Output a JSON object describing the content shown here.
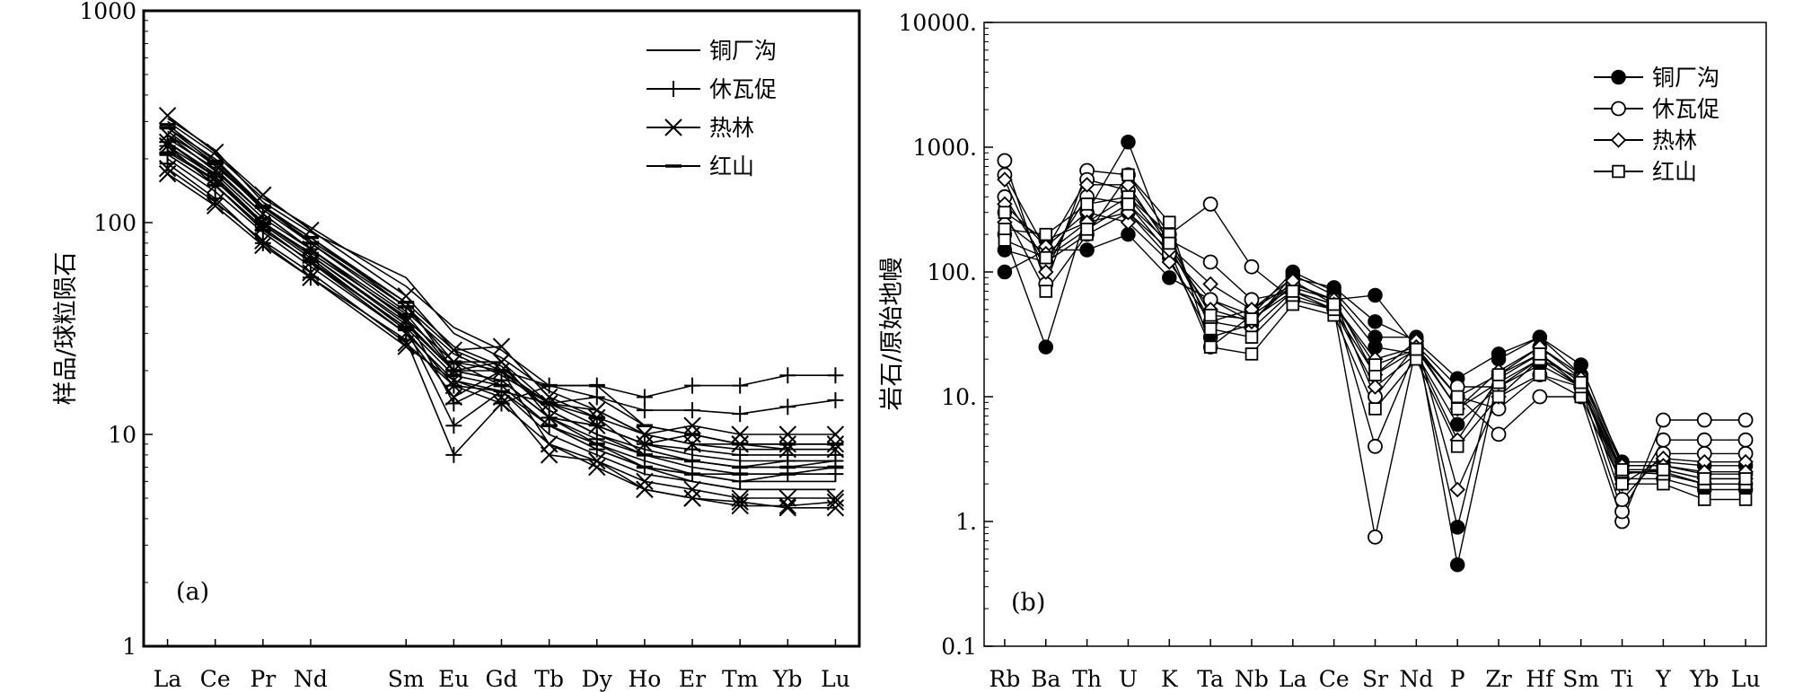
{
  "chart_data": [
    {
      "type": "line",
      "panel_label": "(a)",
      "ylabel": "样品/球粒陨石",
      "scale": "log",
      "ylim": [
        1,
        1000
      ],
      "yticks": [
        1,
        10,
        100,
        1000
      ],
      "ytick_labels": [
        "1",
        "10",
        "100",
        "1000"
      ],
      "categories": [
        "La",
        "Ce",
        "Pr",
        "Nd",
        "Sm",
        "Eu",
        "Gd",
        "Tb",
        "Dy",
        "Ho",
        "Er",
        "Tm",
        "Yb",
        "Lu"
      ],
      "category_positions": [
        1,
        2,
        3,
        4,
        6,
        7,
        8,
        9,
        10,
        11,
        12,
        13,
        14,
        15
      ],
      "xlim": [
        0.5,
        15.5
      ],
      "legend": [
        {
          "name": "铜厂沟",
          "marker": "none"
        },
        {
          "name": "休瓦促",
          "marker": "plus"
        },
        {
          "name": "热林",
          "marker": "x"
        },
        {
          "name": "红山",
          "marker": "dash"
        }
      ],
      "series": [
        {
          "group": "铜厂沟",
          "values": [
            280,
            200,
            120,
            85,
            40,
            25,
            20,
            13,
            10,
            8,
            7,
            6.5,
            6.5,
            6.5
          ]
        },
        {
          "group": "铜厂沟",
          "values": [
            250,
            180,
            110,
            75,
            35,
            22,
            17,
            11,
            8.5,
            7,
            6,
            5.5,
            5.5,
            5.5
          ]
        },
        {
          "group": "铜厂沟",
          "values": [
            220,
            160,
            100,
            70,
            33,
            20,
            18,
            12,
            9,
            7.5,
            6.5,
            6,
            6,
            6
          ]
        },
        {
          "group": "铜厂沟",
          "values": [
            260,
            190,
            115,
            80,
            38,
            24,
            19,
            14,
            11,
            9,
            8,
            7.5,
            7.5,
            7.5
          ]
        },
        {
          "group": "铜厂沟",
          "values": [
            300,
            210,
            130,
            95,
            50,
            32,
            25,
            17,
            15,
            11,
            10,
            9,
            9,
            9
          ]
        },
        {
          "group": "铜厂沟",
          "values": [
            200,
            140,
            90,
            62,
            30,
            18,
            16,
            10,
            8,
            6.5,
            6,
            5.5,
            5.5,
            5.5
          ]
        },
        {
          "group": "铜厂沟",
          "values": [
            270,
            185,
            118,
            82,
            42,
            26,
            21,
            13,
            10,
            8.5,
            7.5,
            7,
            7,
            7.5
          ]
        },
        {
          "group": "铜厂沟",
          "values": [
            310,
            220,
            125,
            90,
            55,
            30,
            23,
            16,
            13,
            10,
            9,
            8.5,
            8.5,
            8.5
          ]
        },
        {
          "group": "休瓦促",
          "values": [
            190,
            130,
            80,
            55,
            28,
            8,
            14,
            17,
            17,
            15,
            17,
            17,
            19,
            19
          ]
        },
        {
          "group": "休瓦促",
          "values": [
            210,
            150,
            95,
            65,
            32,
            11,
            16,
            14,
            15,
            13,
            13,
            12.5,
            13.5,
            14.5
          ]
        },
        {
          "group": "休瓦促",
          "values": [
            230,
            165,
            100,
            72,
            36,
            14,
            18,
            12,
            11,
            9,
            8.5,
            8,
            8,
            8
          ]
        },
        {
          "group": "休瓦促",
          "values": [
            240,
            170,
            105,
            75,
            37,
            20,
            18,
            12,
            9.5,
            8,
            7.5,
            7,
            7.5,
            7.5
          ]
        },
        {
          "group": "休瓦促",
          "values": [
            215,
            158,
            98,
            68,
            31,
            17,
            16,
            11,
            8.5,
            7,
            6.5,
            6,
            6.5,
            6.5
          ]
        },
        {
          "group": "热林",
          "values": [
            320,
            215,
            135,
            92,
            45,
            25,
            26,
            15,
            12,
            10,
            9,
            9,
            9,
            9
          ]
        },
        {
          "group": "热林",
          "values": [
            230,
            150,
            95,
            65,
            30,
            15,
            20,
            9,
            7.5,
            5.5,
            5,
            4.8,
            4.5,
            4.5
          ]
        },
        {
          "group": "热林",
          "values": [
            170,
            120,
            78,
            55,
            26,
            18,
            15,
            8,
            7.5,
            6,
            5.5,
            5,
            5,
            5
          ]
        },
        {
          "group": "热林",
          "values": [
            240,
            165,
            100,
            70,
            34,
            20,
            22,
            12,
            11,
            9,
            10,
            9,
            8.5,
            8.5
          ]
        },
        {
          "group": "热林",
          "values": [
            260,
            175,
            110,
            75,
            35,
            22,
            22,
            14,
            13,
            10,
            11,
            10,
            10,
            10
          ]
        },
        {
          "group": "热林",
          "values": [
            180,
            125,
            82,
            58,
            27,
            17,
            14,
            9,
            7,
            5.5,
            5,
            4.6,
            4.6,
            4.8
          ]
        },
        {
          "group": "红山",
          "values": [
            290,
            195,
            120,
            80,
            40,
            22,
            20,
            17,
            17,
            11,
            10,
            9,
            9,
            9
          ]
        },
        {
          "group": "红山",
          "values": [
            210,
            150,
            92,
            66,
            32,
            19,
            17,
            11,
            9,
            7,
            6.5,
            6.5,
            6.5,
            7
          ]
        },
        {
          "group": "红山",
          "values": [
            280,
            190,
            118,
            85,
            42,
            20,
            20,
            14,
            12,
            8,
            7.5,
            7,
            7,
            7
          ]
        }
      ]
    },
    {
      "type": "line",
      "panel_label": "(b)",
      "ylabel": "岩石/原始地幔",
      "scale": "log",
      "ylim": [
        0.1,
        10000
      ],
      "yticks": [
        0.1,
        1,
        10,
        100,
        1000,
        10000
      ],
      "ytick_labels": [
        "0.1",
        "1.",
        "10.",
        "100.",
        "1000.",
        "10000."
      ],
      "categories": [
        "Rb",
        "Ba",
        "Th",
        "U",
        "K",
        "Ta",
        "Nb",
        "La",
        "Ce",
        "Sr",
        "Nd",
        "P",
        "Zr",
        "Hf",
        "Sm",
        "Ti",
        "Y",
        "Yb",
        "Lu"
      ],
      "xlim": [
        0.5,
        19.5
      ],
      "legend": [
        {
          "name": "铜厂沟",
          "marker": "filled-circle"
        },
        {
          "name": "休瓦促",
          "marker": "circle"
        },
        {
          "name": "热林",
          "marker": "diamond"
        },
        {
          "name": "红山",
          "marker": "square"
        }
      ],
      "series": [
        {
          "group": "铜厂沟",
          "values": [
            200,
            25,
            300,
            1100,
            150,
            25,
            45,
            100,
            70,
            30,
            30,
            0.45,
            15,
            25,
            15,
            2.5,
            2.5,
            2,
            2
          ]
        },
        {
          "group": "铜厂沟",
          "values": [
            100,
            150,
            150,
            200,
            90,
            60,
            40,
            80,
            60,
            65,
            25,
            0.9,
            20,
            30,
            18,
            2.8,
            2.8,
            2.4,
            2.4
          ]
        },
        {
          "group": "铜厂沟",
          "values": [
            300,
            180,
            250,
            400,
            160,
            40,
            50,
            90,
            75,
            40,
            28,
            14,
            22,
            30,
            15,
            3,
            3,
            2.8,
            2.8
          ]
        },
        {
          "group": "铜厂沟",
          "values": [
            150,
            120,
            200,
            300,
            130,
            30,
            38,
            95,
            65,
            25,
            22,
            6,
            12,
            18,
            12,
            2.2,
            2.2,
            1.8,
            1.8
          ]
        },
        {
          "group": "休瓦促",
          "values": [
            780,
            80,
            650,
            600,
            200,
            350,
            110,
            60,
            50,
            0.75,
            25,
            10,
            5,
            10,
            10,
            1,
            6.5,
            6.5,
            6.5
          ]
        },
        {
          "group": "休瓦促",
          "values": [
            600,
            150,
            550,
            450,
            180,
            120,
            60,
            70,
            55,
            4,
            24,
            10,
            8,
            15,
            12,
            1.2,
            4.5,
            4.5,
            4.5
          ]
        },
        {
          "group": "休瓦促",
          "values": [
            400,
            120,
            400,
            350,
            140,
            60,
            45,
            75,
            60,
            10,
            26,
            12,
            12,
            20,
            14,
            1.5,
            3.5,
            3.5,
            3.5
          ]
        },
        {
          "group": "热林",
          "values": [
            550,
            100,
            500,
            500,
            160,
            80,
            50,
            80,
            60,
            15,
            28,
            1.8,
            10,
            20,
            12,
            2,
            3.2,
            3,
            3
          ]
        },
        {
          "group": "热林",
          "values": [
            350,
            160,
            300,
            250,
            120,
            40,
            35,
            70,
            50,
            12,
            22,
            4.5,
            14,
            22,
            12,
            2.4,
            2.6,
            2.2,
            2.2
          ]
        },
        {
          "group": "热林",
          "values": [
            250,
            140,
            250,
            300,
            150,
            50,
            40,
            85,
            55,
            20,
            25,
            8,
            16,
            25,
            14,
            2.8,
            2.8,
            2.5,
            2.5
          ]
        },
        {
          "group": "红山",
          "values": [
            300,
            70,
            200,
            600,
            250,
            25,
            22,
            55,
            45,
            8,
            20,
            4,
            10,
            15,
            10,
            2,
            2,
            1.5,
            1.5
          ]
        },
        {
          "group": "红山",
          "values": [
            220,
            200,
            350,
            400,
            200,
            35,
            30,
            65,
            50,
            15,
            24,
            8,
            13,
            20,
            12,
            2.5,
            2.4,
            2,
            2
          ]
        },
        {
          "group": "红山",
          "values": [
            180,
            130,
            220,
            350,
            170,
            45,
            42,
            70,
            55,
            18,
            24,
            10,
            15,
            22,
            13,
            2.6,
            2.6,
            2.2,
            2.2
          ]
        }
      ]
    }
  ]
}
